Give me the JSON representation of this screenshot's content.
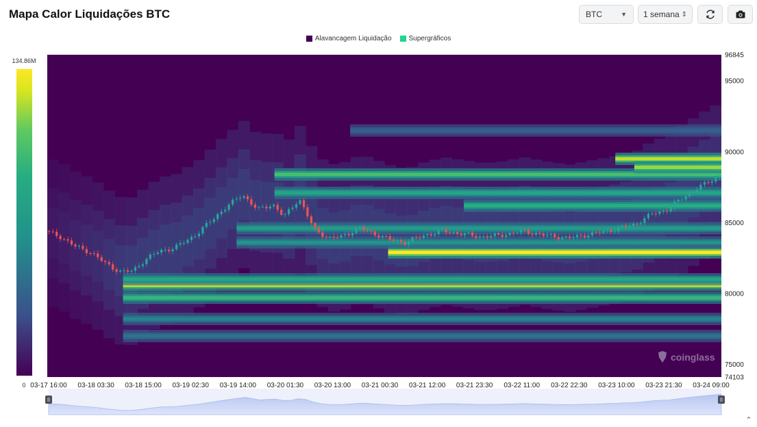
{
  "header": {
    "title": "Mapa Calor Liquidações BTC",
    "symbol": "BTC",
    "range": "1 semana"
  },
  "icons": {
    "symbol_dropdown": "chevron-down-icon",
    "range_stepper": "up-down-chevron-icon",
    "refresh": "refresh-icon",
    "camera": "camera-icon",
    "collapse": "chevron-up-icon"
  },
  "watermark": "coinglass",
  "colorbar": {
    "max_label": "134.86M",
    "min_label": "0",
    "colors": [
      "#440154",
      "#3b528b",
      "#21918c",
      "#27ad81",
      "#5ec962",
      "#d9e51e",
      "#fde725"
    ]
  },
  "chart_data": {
    "type": "heatmap",
    "title": "Mapa Calor Liquidações BTC",
    "legend": [
      {
        "name": "Alavancagem Liquidação",
        "color": "#440154"
      },
      {
        "name": "Supergráficos",
        "color": "#22d48f"
      }
    ],
    "legend_position": "top-center",
    "x_tick_labels": [
      "03-17 16:00",
      "03-18 03:30",
      "03-18 15:00",
      "03-19 02:30",
      "03-19 14:00",
      "03-20 01:30",
      "03-20 13:00",
      "03-21 00:30",
      "03-21 12:00",
      "03-21 23:30",
      "03-22 11:00",
      "03-22 22:30",
      "03-23 10:00",
      "03-23 21:30",
      "03-24 09:00"
    ],
    "y_tick_labels": [
      "96845",
      "95000",
      "90000",
      "85000",
      "80000",
      "75000",
      "74103"
    ],
    "ylim": [
      74103,
      96845
    ],
    "y_ticks": [
      95000,
      90000,
      85000,
      80000,
      75000
    ],
    "price_path": {
      "hours": [
        0,
        4,
        8,
        12,
        16,
        20,
        23,
        26,
        30,
        34,
        40,
        46,
        52,
        56,
        60,
        63,
        67,
        71,
        75,
        78,
        83,
        87,
        91,
        95,
        100,
        105,
        110,
        115,
        120,
        126,
        132,
        138,
        144,
        150,
        156,
        160,
        164,
        168,
        172,
        176,
        178
      ],
      "prices": [
        84400,
        84000,
        83300,
        82900,
        82100,
        81500,
        81600,
        82300,
        83000,
        83200,
        84200,
        85700,
        87000,
        85900,
        86300,
        85400,
        86700,
        84500,
        83900,
        84000,
        84600,
        84200,
        83800,
        83600,
        84100,
        84400,
        84200,
        84000,
        84100,
        84400,
        84100,
        83900,
        84200,
        84500,
        84900,
        85600,
        85900,
        86700,
        87400,
        88000,
        88300
      ]
    },
    "bands": [
      {
        "price": 82900,
        "start_hour": 90,
        "intensity": 1.0
      },
      {
        "price": 80600,
        "start_hour": 20,
        "intensity": 0.9
      },
      {
        "price": 79700,
        "start_hour": 20,
        "intensity": 0.55
      },
      {
        "price": 81000,
        "start_hour": 20,
        "intensity": 0.45
      },
      {
        "price": 88400,
        "start_hour": 60,
        "intensity": 0.6
      },
      {
        "price": 87100,
        "start_hour": 60,
        "intensity": 0.45
      },
      {
        "price": 86200,
        "start_hour": 110,
        "intensity": 0.5
      },
      {
        "price": 84600,
        "start_hour": 50,
        "intensity": 0.4
      },
      {
        "price": 83600,
        "start_hour": 50,
        "intensity": 0.35
      },
      {
        "price": 78200,
        "start_hour": 20,
        "intensity": 0.3
      },
      {
        "price": 77000,
        "start_hour": 20,
        "intensity": 0.25
      },
      {
        "price": 89500,
        "start_hour": 150,
        "intensity": 0.8
      },
      {
        "price": 88900,
        "start_hour": 155,
        "intensity": 0.75
      },
      {
        "price": 91500,
        "start_hour": 80,
        "intensity": 0.2
      }
    ]
  }
}
